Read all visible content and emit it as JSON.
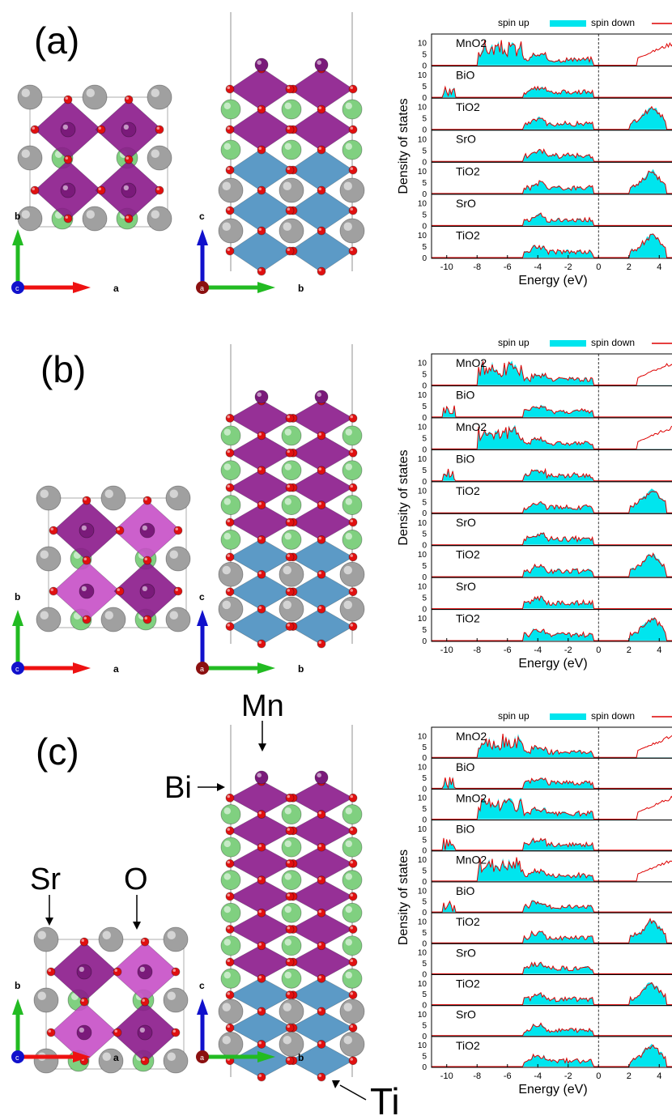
{
  "colors": {
    "spin_up": "#00e5ee",
    "spin_down": "#dd0000",
    "octa_mn": "#8b1a8b",
    "octa_mn_light": "#c64fc6",
    "octa_ti": "#4a8fc0",
    "atom_o": "#e01010",
    "atom_sr": "#a0a0a0",
    "atom_bi": "#80d080",
    "atom_mn": "#7a1a7a",
    "axis_a": "#ee1111",
    "axis_b": "#22bb22",
    "axis_c": "#1111cc"
  },
  "panels": [
    {
      "label": "(a)",
      "axes_left": {
        "vertical": "b",
        "horizontal": "a",
        "origin": "c"
      },
      "axes_right": {
        "vertical": "c",
        "horizontal": "b",
        "origin": "a"
      },
      "chart_data": {
        "type": "area",
        "title": "",
        "xlabel": "Energy (eV)",
        "ylabel": "Density of states",
        "xlim": [
          -11,
          5
        ],
        "xticks": [
          "-10",
          "-8",
          "-6",
          "-4",
          "-2",
          "0",
          "2",
          "4"
        ],
        "yticks": [
          "0",
          "5",
          "10"
        ],
        "legend": [
          "spin up",
          "spin down"
        ],
        "layers": [
          "MnO2",
          "BiO",
          "TiO2",
          "SrO",
          "TiO2",
          "SrO",
          "TiO2"
        ]
      }
    },
    {
      "label": "(b)",
      "axes_left": {
        "vertical": "b",
        "horizontal": "a",
        "origin": "c"
      },
      "axes_right": {
        "vertical": "c",
        "horizontal": "b",
        "origin": "a"
      },
      "chart_data": {
        "type": "area",
        "title": "",
        "xlabel": "Energy (eV)",
        "ylabel": "Density of states",
        "xlim": [
          -11,
          5
        ],
        "xticks": [
          "-10",
          "-8",
          "-6",
          "-4",
          "-2",
          "0",
          "2",
          "4"
        ],
        "yticks": [
          "0",
          "5",
          "10"
        ],
        "legend": [
          "spin up",
          "spin down"
        ],
        "layers": [
          "MnO2",
          "BiO",
          "MnO2",
          "BiO",
          "TiO2",
          "SrO",
          "TiO2",
          "SrO",
          "TiO2"
        ]
      }
    },
    {
      "label": "(c)",
      "axes_left": {
        "vertical": "b",
        "horizontal": "a",
        "origin": "c"
      },
      "axes_right": {
        "vertical": "c",
        "horizontal": "b",
        "origin": "a"
      },
      "annotations": {
        "mn": "Mn",
        "bi": "Bi",
        "sr": "Sr",
        "o": "O",
        "ti": "Ti"
      },
      "chart_data": {
        "type": "area",
        "title": "",
        "xlabel": "Energy (eV)",
        "ylabel": "Density of states",
        "xlim": [
          -11,
          5
        ],
        "xticks": [
          "-10",
          "-8",
          "-6",
          "-4",
          "-2",
          "0",
          "2",
          "4"
        ],
        "yticks": [
          "0",
          "5",
          "10"
        ],
        "legend": [
          "spin up",
          "spin down"
        ],
        "layers": [
          "MnO2",
          "BiO",
          "MnO2",
          "BiO",
          "MnO2",
          "BiO",
          "TiO2",
          "SrO",
          "TiO2",
          "SrO",
          "TiO2"
        ]
      }
    }
  ]
}
